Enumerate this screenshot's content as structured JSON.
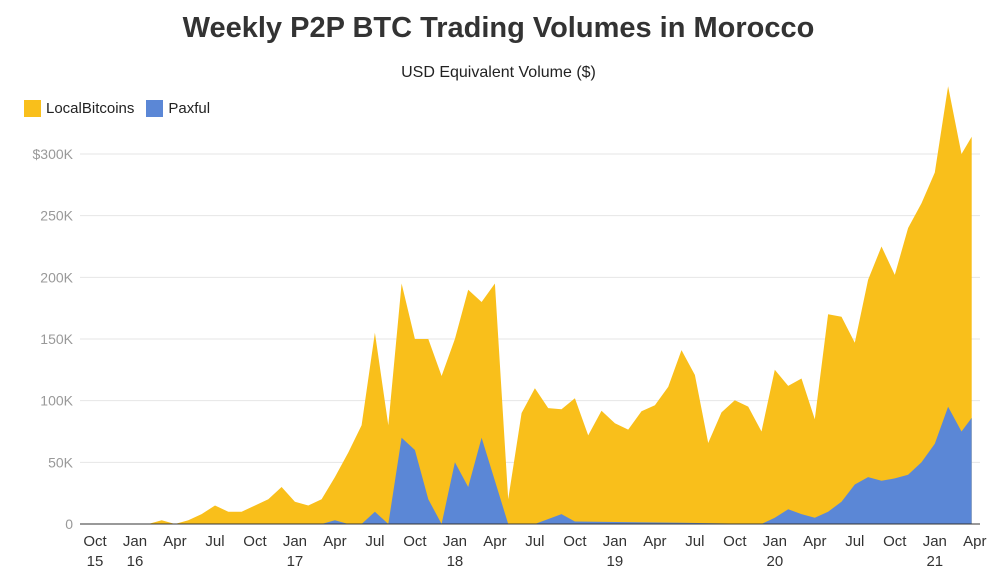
{
  "chart_data": {
    "type": "area",
    "title": "Weekly P2P BTC Trading Volumes in Morocco",
    "subtitle": "USD Equivalent Volume ($)",
    "stacked": true,
    "legend_position": "top-left",
    "grid": true,
    "ylim": [
      0,
      300000
    ],
    "y_ticks": [
      {
        "value": 0,
        "label": "0"
      },
      {
        "value": 50000,
        "label": "50K"
      },
      {
        "value": 100000,
        "label": "100K"
      },
      {
        "value": 150000,
        "label": "150K"
      },
      {
        "value": 200000,
        "label": "200K"
      },
      {
        "value": 250000,
        "label": "250K"
      },
      {
        "value": 300000,
        "label": "$300K"
      }
    ],
    "x_ticks": [
      {
        "date": "2015-10",
        "label": "Oct",
        "sublabel": "15"
      },
      {
        "date": "2016-01",
        "label": "Jan",
        "sublabel": "16"
      },
      {
        "date": "2016-04",
        "label": "Apr",
        "sublabel": ""
      },
      {
        "date": "2016-07",
        "label": "Jul",
        "sublabel": ""
      },
      {
        "date": "2016-10",
        "label": "Oct",
        "sublabel": ""
      },
      {
        "date": "2017-01",
        "label": "Jan",
        "sublabel": "17"
      },
      {
        "date": "2017-04",
        "label": "Apr",
        "sublabel": ""
      },
      {
        "date": "2017-07",
        "label": "Jul",
        "sublabel": ""
      },
      {
        "date": "2017-10",
        "label": "Oct",
        "sublabel": ""
      },
      {
        "date": "2018-01",
        "label": "Jan",
        "sublabel": "18"
      },
      {
        "date": "2018-04",
        "label": "Apr",
        "sublabel": ""
      },
      {
        "date": "2018-07",
        "label": "Jul",
        "sublabel": ""
      },
      {
        "date": "2018-10",
        "label": "Oct",
        "sublabel": ""
      },
      {
        "date": "2019-01",
        "label": "Jan",
        "sublabel": "19"
      },
      {
        "date": "2019-04",
        "label": "Apr",
        "sublabel": ""
      },
      {
        "date": "2019-07",
        "label": "Jul",
        "sublabel": ""
      },
      {
        "date": "2019-10",
        "label": "Oct",
        "sublabel": ""
      },
      {
        "date": "2020-01",
        "label": "Jan",
        "sublabel": "20"
      },
      {
        "date": "2020-04",
        "label": "Apr",
        "sublabel": ""
      },
      {
        "date": "2020-07",
        "label": "Jul",
        "sublabel": ""
      },
      {
        "date": "2020-10",
        "label": "Oct",
        "sublabel": ""
      },
      {
        "date": "2021-01",
        "label": "Jan",
        "sublabel": "21"
      },
      {
        "date": "2021-04",
        "label": "Apr",
        "sublabel": ""
      }
    ],
    "series": [
      {
        "name": "LocalBitcoins",
        "color": "#F9BF1B",
        "points": [
          [
            "2015-10",
            0
          ],
          [
            "2016-02",
            0
          ],
          [
            "2016-03",
            3000
          ],
          [
            "2016-04",
            0
          ],
          [
            "2016-05",
            3000
          ],
          [
            "2016-06",
            8000
          ],
          [
            "2016-07",
            15000
          ],
          [
            "2016-08",
            10000
          ],
          [
            "2016-09",
            10000
          ],
          [
            "2016-10",
            15000
          ],
          [
            "2016-11",
            20000
          ],
          [
            "2016-12",
            30000
          ],
          [
            "2017-01",
            18000
          ],
          [
            "2017-02",
            15000
          ],
          [
            "2017-03",
            20000
          ],
          [
            "2017-04",
            35000
          ],
          [
            "2017-05",
            58000
          ],
          [
            "2017-06",
            80000
          ],
          [
            "2017-07",
            145000
          ],
          [
            "2017-08",
            80000
          ],
          [
            "2017-09",
            125000
          ],
          [
            "2017-10",
            90000
          ],
          [
            "2017-11",
            130000
          ],
          [
            "2017-12",
            120000
          ],
          [
            "2018-01",
            100000
          ],
          [
            "2018-02",
            160000
          ],
          [
            "2018-03",
            110000
          ],
          [
            "2018-04",
            160000
          ],
          [
            "2018-05",
            20000
          ],
          [
            "2018-06",
            90000
          ],
          [
            "2018-07",
            110000
          ],
          [
            "2018-08",
            90000
          ],
          [
            "2018-09",
            85000
          ],
          [
            "2018-10",
            100000
          ],
          [
            "2018-11",
            70000
          ],
          [
            "2018-12",
            90000
          ],
          [
            "2019-01",
            80000
          ],
          [
            "2019-02",
            75000
          ],
          [
            "2019-03",
            90000
          ],
          [
            "2019-04",
            95000
          ],
          [
            "2019-05",
            110000
          ],
          [
            "2019-06",
            140000
          ],
          [
            "2019-07",
            120000
          ],
          [
            "2019-08",
            65000
          ],
          [
            "2019-09",
            90000
          ],
          [
            "2019-10",
            100000
          ],
          [
            "2019-11",
            95000
          ],
          [
            "2019-12",
            75000
          ],
          [
            "2020-01",
            120000
          ],
          [
            "2020-02",
            100000
          ],
          [
            "2020-03",
            110000
          ],
          [
            "2020-04",
            80000
          ],
          [
            "2020-05",
            160000
          ],
          [
            "2020-06",
            150000
          ],
          [
            "2020-07",
            115000
          ],
          [
            "2020-08",
            160000
          ],
          [
            "2020-09",
            190000
          ],
          [
            "2020-10",
            165000
          ],
          [
            "2020-11",
            200000
          ],
          [
            "2020-12",
            210000
          ],
          [
            "2021-01",
            220000
          ],
          [
            "2021-02",
            260000
          ],
          [
            "2021-03",
            225000
          ],
          [
            "2021-03-24",
            228000
          ]
        ]
      },
      {
        "name": "Paxful",
        "color": "#5B87D6",
        "points": [
          [
            "2015-10",
            0
          ],
          [
            "2017-03",
            0
          ],
          [
            "2017-04",
            3000
          ],
          [
            "2017-05",
            0
          ],
          [
            "2017-06",
            0
          ],
          [
            "2017-07",
            10000
          ],
          [
            "2017-08",
            0
          ],
          [
            "2017-09",
            70000
          ],
          [
            "2017-10",
            60000
          ],
          [
            "2017-11",
            20000
          ],
          [
            "2017-12",
            0
          ],
          [
            "2018-01",
            50000
          ],
          [
            "2018-02",
            30000
          ],
          [
            "2018-03",
            70000
          ],
          [
            "2018-04",
            35000
          ],
          [
            "2018-05",
            0
          ],
          [
            "2018-06",
            0
          ],
          [
            "2018-07",
            0
          ],
          [
            "2018-09",
            8000
          ],
          [
            "2018-10",
            2000
          ],
          [
            "2019-06",
            1000
          ],
          [
            "2019-12",
            0
          ],
          [
            "2020-01",
            5000
          ],
          [
            "2020-02",
            12000
          ],
          [
            "2020-03",
            8000
          ],
          [
            "2020-04",
            5000
          ],
          [
            "2020-05",
            10000
          ],
          [
            "2020-06",
            18000
          ],
          [
            "2020-07",
            32000
          ],
          [
            "2020-08",
            38000
          ],
          [
            "2020-09",
            35000
          ],
          [
            "2020-10",
            37000
          ],
          [
            "2020-11",
            40000
          ],
          [
            "2020-12",
            50000
          ],
          [
            "2021-01",
            65000
          ],
          [
            "2021-02",
            95000
          ],
          [
            "2021-03",
            75000
          ],
          [
            "2021-03-24",
            86000
          ]
        ]
      }
    ]
  }
}
